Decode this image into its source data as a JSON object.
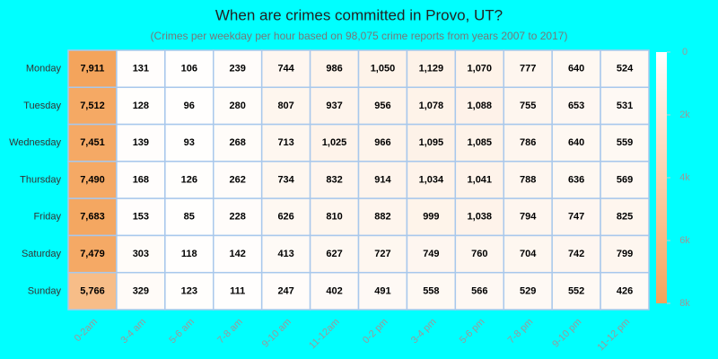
{
  "chart_data": {
    "type": "heatmap",
    "title": "When are crimes committed in Provo, UT?",
    "subtitle": "(Crimes per weekday per hour based on 98,075 crime reports from years 2007 to 2017)",
    "columns": [
      "0-2am",
      "3-4 am",
      "5-6 am",
      "7-8 am",
      "9-10 am",
      "11-12am",
      "0-2 pm",
      "3-4 pm",
      "5-6 pm",
      "7-8 pm",
      "9-10 pm",
      "11-12 pm"
    ],
    "rows": [
      "Monday",
      "Tuesday",
      "Wednesday",
      "Thursday",
      "Friday",
      "Saturday",
      "Sunday"
    ],
    "values": [
      [
        7911,
        131,
        106,
        239,
        744,
        986,
        1050,
        1129,
        1070,
        777,
        640,
        524
      ],
      [
        7512,
        128,
        96,
        280,
        807,
        937,
        956,
        1078,
        1088,
        755,
        653,
        531
      ],
      [
        7451,
        139,
        93,
        268,
        713,
        1025,
        966,
        1095,
        1085,
        786,
        640,
        559
      ],
      [
        7490,
        168,
        126,
        262,
        734,
        832,
        914,
        1034,
        1041,
        788,
        636,
        569
      ],
      [
        7683,
        153,
        85,
        228,
        626,
        810,
        882,
        999,
        1038,
        794,
        747,
        825
      ],
      [
        7479,
        303,
        118,
        142,
        413,
        627,
        727,
        749,
        760,
        704,
        742,
        799
      ],
      [
        5766,
        329,
        123,
        111,
        247,
        402,
        491,
        558,
        566,
        529,
        552,
        426
      ]
    ],
    "value_labels": [
      [
        "7,911",
        "131",
        "106",
        "239",
        "744",
        "986",
        "1,050",
        "1,129",
        "1,070",
        "777",
        "640",
        "524"
      ],
      [
        "7,512",
        "128",
        "96",
        "280",
        "807",
        "937",
        "956",
        "1,078",
        "1,088",
        "755",
        "653",
        "531"
      ],
      [
        "7,451",
        "139",
        "93",
        "268",
        "713",
        "1,025",
        "966",
        "1,095",
        "1,085",
        "786",
        "640",
        "559"
      ],
      [
        "7,490",
        "168",
        "126",
        "262",
        "734",
        "832",
        "914",
        "1,034",
        "1,041",
        "788",
        "636",
        "569"
      ],
      [
        "7,683",
        "153",
        "85",
        "228",
        "626",
        "810",
        "882",
        "999",
        "1,038",
        "794",
        "747",
        "825"
      ],
      [
        "7,479",
        "303",
        "118",
        "142",
        "413",
        "627",
        "727",
        "749",
        "760",
        "704",
        "742",
        "799"
      ],
      [
        "5,766",
        "329",
        "123",
        "111",
        "247",
        "402",
        "491",
        "558",
        "566",
        "529",
        "552",
        "426"
      ]
    ],
    "colorbar": {
      "lim": [
        0,
        8000
      ],
      "ticks": [
        0,
        {
          "value": 2000,
          "label": "2k"
        },
        {
          "value": 4000,
          "label": "4k"
        },
        {
          "value": 6000,
          "label": "6k"
        },
        {
          "value": 8000,
          "label": "8k"
        }
      ],
      "colors": [
        "#ffffff",
        "#f4a35a"
      ]
    },
    "grid_color": "#a8c8ec"
  }
}
